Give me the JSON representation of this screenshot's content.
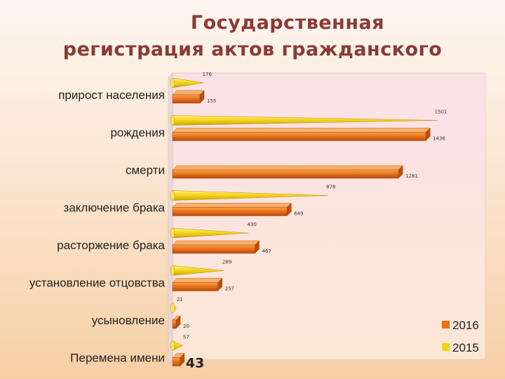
{
  "title": {
    "line1": "Государственная",
    "line2": "регистрация актов гражданского"
  },
  "colors": {
    "series_2016": "#e8701a",
    "series_2015": "#f4d21a",
    "title": "#8b3a35"
  },
  "chart_data": {
    "type": "bar",
    "orientation": "horizontal",
    "title": "Государственная регистрация актов гражданского",
    "categories": [
      "прирост населения",
      "рождения",
      "смерти",
      "заключение брака",
      "расторжение брака",
      "установление отцовства",
      "усыновление",
      "Перемена имени"
    ],
    "series": [
      {
        "name": "2016",
        "values": [
          155,
          1436,
          1281,
          649,
          467,
          257,
          20,
          43
        ]
      },
      {
        "name": "2015",
        "values": [
          176,
          1501,
          null,
          878,
          430,
          289,
          21,
          57
        ]
      }
    ],
    "legend": [
      "2016",
      "2015"
    ],
    "legend_position": "bottom-right",
    "xlim": [
      0,
      1600
    ]
  }
}
